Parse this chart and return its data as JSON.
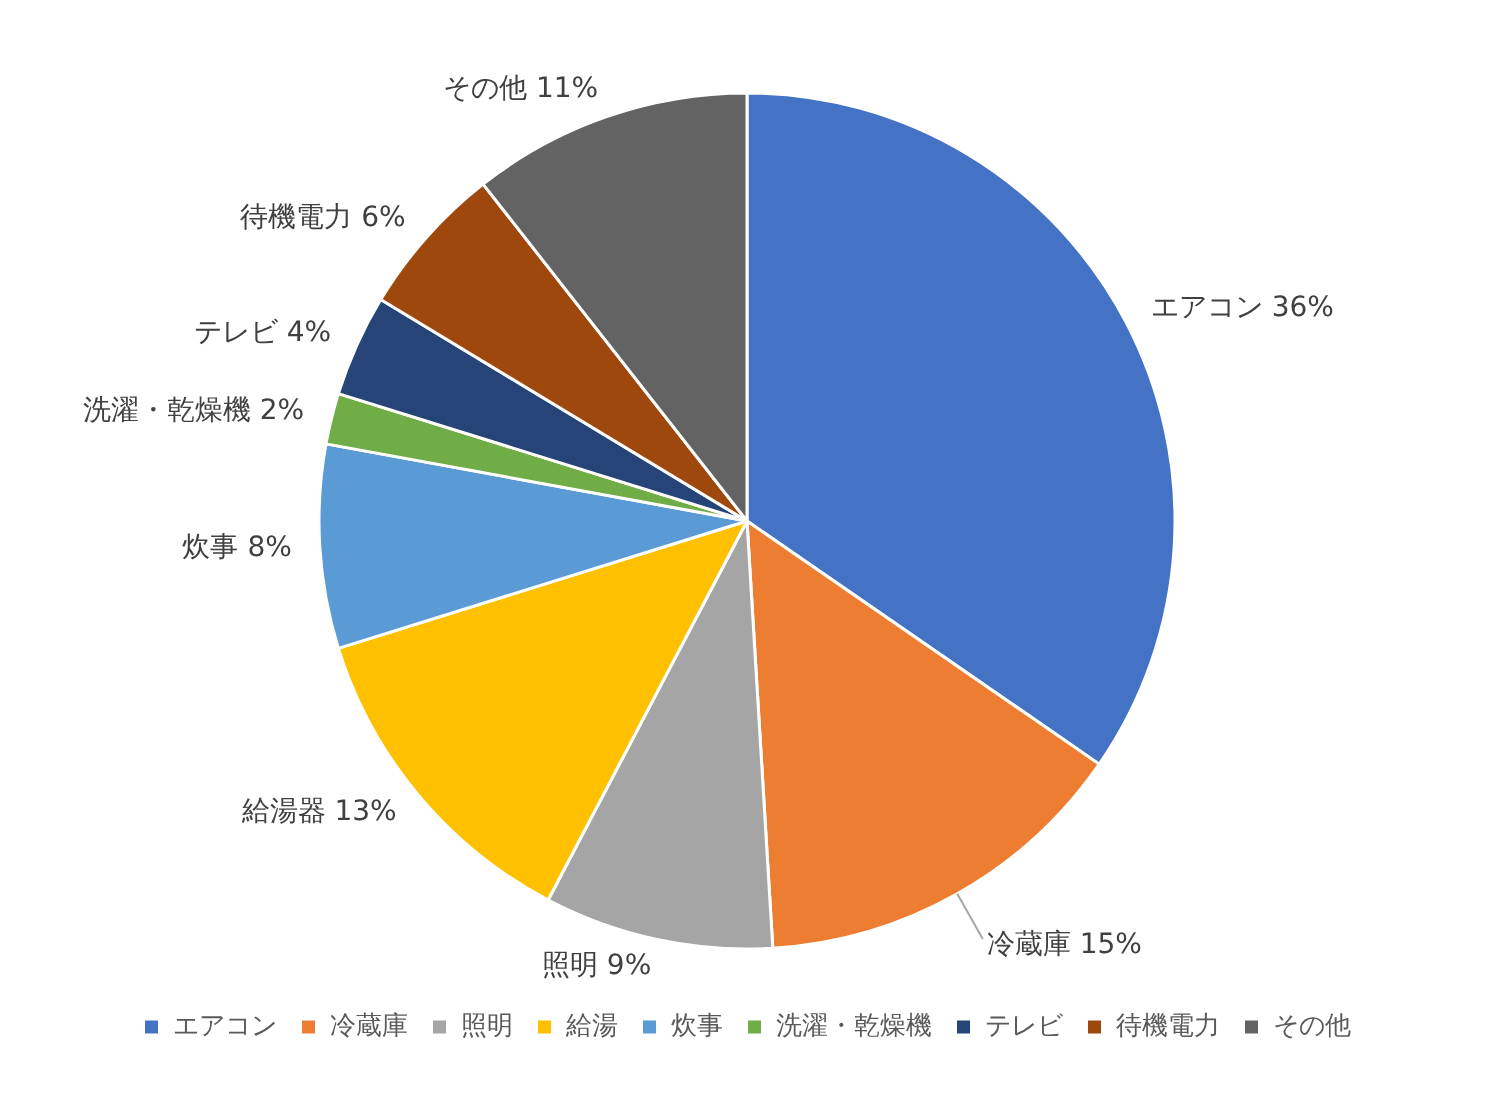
{
  "chart_data": {
    "type": "pie",
    "categories": [
      "エアコン",
      "冷蔵庫",
      "照明",
      "給湯",
      "炊事",
      "洗濯・乾燥機",
      "テレビ",
      "待機電力",
      "その他"
    ],
    "values": [
      36,
      15,
      9,
      13,
      8,
      2,
      4,
      6,
      11
    ],
    "colors": [
      "#4472c4",
      "#ed7d31",
      "#a5a5a5",
      "#ffc000",
      "#5b9bd5",
      "#70ad47",
      "#264478",
      "#9e480e",
      "#636363"
    ],
    "value_labels": [
      "エアコン 36%",
      "冷蔵庫 15%",
      "照明 9%",
      "給湯器 13%",
      "炊事 8%",
      "洗濯・乾燥機 2%",
      "テレビ 4%",
      "待機電力 6%",
      "その他 11%"
    ],
    "legend": "bottom"
  }
}
